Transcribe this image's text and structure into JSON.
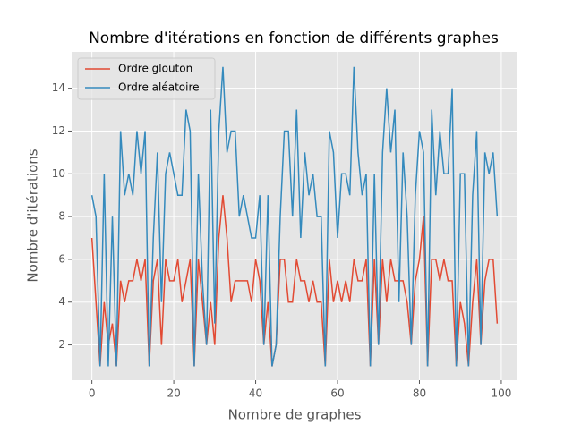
{
  "chart_data": {
    "type": "line",
    "title": "Nombre d'itérations en fonction de différents graphes",
    "x_label": "Nombre de graphes",
    "y_label": "Nombre d'itérations",
    "x": [
      0,
      1,
      2,
      3,
      4,
      5,
      6,
      7,
      8,
      9,
      10,
      11,
      12,
      13,
      14,
      15,
      16,
      17,
      18,
      19,
      20,
      21,
      22,
      23,
      24,
      25,
      26,
      27,
      28,
      29,
      30,
      31,
      32,
      33,
      34,
      35,
      36,
      37,
      38,
      39,
      40,
      41,
      42,
      43,
      44,
      45,
      46,
      47,
      48,
      49,
      50,
      51,
      52,
      53,
      54,
      55,
      56,
      57,
      58,
      59,
      60,
      61,
      62,
      63,
      64,
      65,
      66,
      67,
      68,
      69,
      70,
      71,
      72,
      73,
      74,
      75,
      76,
      77,
      78,
      79,
      80,
      81,
      82,
      83,
      84,
      85,
      86,
      87,
      88,
      89,
      90,
      91,
      92,
      93,
      94,
      95,
      96,
      97,
      98,
      99
    ],
    "series": [
      {
        "name": "Ordre glouton",
        "color": "#E24A33",
        "values": [
          7,
          4,
          1,
          4,
          2,
          3,
          1,
          5,
          4,
          5,
          5,
          6,
          5,
          6,
          1,
          5,
          6,
          2,
          6,
          5,
          5,
          6,
          4,
          5,
          6,
          1,
          6,
          4,
          2,
          4,
          2,
          7,
          9,
          7,
          4,
          5,
          5,
          5,
          5,
          4,
          6,
          5,
          2,
          4,
          1,
          2,
          6,
          6,
          4,
          4,
          6,
          5,
          5,
          4,
          5,
          4,
          4,
          1,
          6,
          4,
          5,
          4,
          5,
          4,
          6,
          5,
          5,
          6,
          1,
          6,
          2,
          6,
          4,
          6,
          5,
          5,
          5,
          4,
          2,
          5,
          6,
          8,
          1,
          6,
          6,
          5,
          6,
          5,
          5,
          1,
          4,
          3,
          1,
          4,
          6,
          2,
          5,
          6,
          6,
          3
        ]
      },
      {
        "name": "Ordre aléatoire",
        "color": "#348ABD",
        "values": [
          9,
          8,
          1,
          10,
          1,
          8,
          1,
          12,
          9,
          10,
          9,
          12,
          10,
          12,
          1,
          7,
          11,
          4,
          10,
          11,
          10,
          9,
          9,
          13,
          12,
          1,
          10,
          5,
          2,
          13,
          3,
          12,
          15,
          11,
          12,
          12,
          8,
          9,
          8,
          7,
          7,
          9,
          2,
          9,
          1,
          2,
          8,
          12,
          12,
          8,
          13,
          7,
          11,
          9,
          10,
          8,
          8,
          1,
          12,
          11,
          7,
          10,
          10,
          9,
          15,
          11,
          9,
          10,
          1,
          10,
          2,
          11,
          14,
          11,
          13,
          4,
          11,
          8,
          2,
          9,
          12,
          11,
          1,
          13,
          9,
          12,
          10,
          10,
          14,
          1,
          10,
          10,
          1,
          9,
          12,
          2,
          11,
          10,
          11,
          8
        ]
      }
    ],
    "xlim": [
      -4.95,
      103.95
    ],
    "ylim": [
      0.35,
      15.7
    ],
    "xticks": [
      0,
      20,
      40,
      60,
      80,
      100
    ],
    "yticks": [
      2,
      4,
      6,
      8,
      10,
      12,
      14
    ],
    "grid": true,
    "legend": "upper left"
  }
}
